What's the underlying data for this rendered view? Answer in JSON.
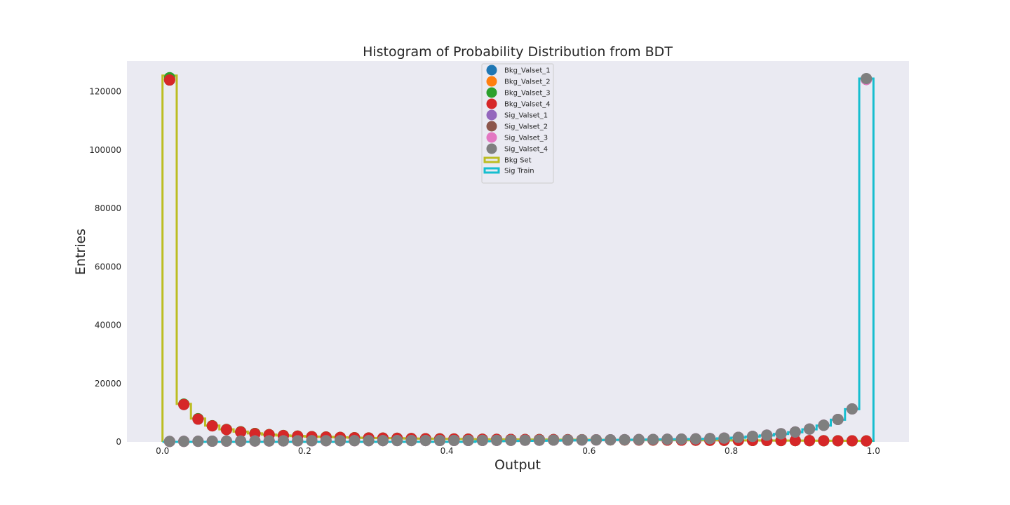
{
  "chart_data": {
    "type": "histogram",
    "title": "Histogram of Probability Distribution from BDT",
    "xlabel": "Output",
    "ylabel": "Entries",
    "xlim": [
      -0.05,
      1.05
    ],
    "ylim": [
      0,
      130500
    ],
    "xticks": [
      0.0,
      0.2,
      0.4,
      0.6,
      0.8,
      1.0
    ],
    "xtick_labels": [
      "0.0",
      "0.2",
      "0.4",
      "0.6",
      "0.8",
      "1.0"
    ],
    "yticks": [
      0,
      20000,
      40000,
      60000,
      80000,
      100000,
      120000
    ],
    "ytick_labels": [
      "0",
      "20000",
      "40000",
      "60000",
      "80000",
      "100000",
      "120000"
    ],
    "grid": false,
    "background": "#eaeaf2",
    "legend_position": "upper-center",
    "bin_edges": [
      0.0,
      0.02,
      0.04,
      0.06,
      0.08,
      0.1,
      0.12,
      0.14,
      0.16,
      0.18,
      0.2,
      0.22,
      0.24,
      0.26,
      0.28,
      0.3,
      0.32,
      0.34,
      0.36,
      0.38,
      0.4,
      0.42,
      0.44,
      0.46,
      0.48,
      0.5,
      0.52,
      0.54,
      0.56,
      0.58,
      0.6,
      0.62,
      0.64,
      0.66,
      0.68,
      0.7,
      0.72,
      0.74,
      0.76,
      0.78,
      0.8,
      0.82,
      0.84,
      0.86,
      0.88,
      0.9,
      0.92,
      0.94,
      0.96,
      0.98,
      1.0
    ],
    "bin_centers": [
      0.01,
      0.03,
      0.05,
      0.07,
      0.09,
      0.11,
      0.13,
      0.15,
      0.17,
      0.19,
      0.21,
      0.23,
      0.25,
      0.27,
      0.29,
      0.31,
      0.33,
      0.35,
      0.37,
      0.39,
      0.41,
      0.43,
      0.45,
      0.47,
      0.49,
      0.51,
      0.53,
      0.55,
      0.57,
      0.59,
      0.61,
      0.63,
      0.65,
      0.67,
      0.69,
      0.71,
      0.73,
      0.75,
      0.77,
      0.79,
      0.81,
      0.83,
      0.85,
      0.87,
      0.89,
      0.91,
      0.93,
      0.95,
      0.97,
      0.99
    ],
    "histograms": [
      {
        "name": "Bkg Set",
        "color": "#bcbd22",
        "values": [
          125500,
          13000,
          8000,
          5600,
          4300,
          3500,
          2900,
          2500,
          2200,
          2000,
          1800,
          1700,
          1550,
          1450,
          1350,
          1300,
          1250,
          1150,
          1100,
          1050,
          1000,
          950,
          900,
          880,
          850,
          820,
          800,
          780,
          760,
          740,
          720,
          700,
          680,
          660,
          640,
          620,
          600,
          580,
          560,
          540,
          520,
          500,
          480,
          460,
          440,
          420,
          400,
          380,
          360,
          340
        ]
      },
      {
        "name": "Sig Train",
        "color": "#17becf",
        "values": [
          0,
          0,
          0,
          0,
          0,
          0,
          0,
          0,
          0,
          0,
          0,
          0,
          0,
          0,
          0,
          0,
          0,
          0,
          0,
          0,
          0,
          0,
          200,
          250,
          300,
          350,
          400,
          450,
          500,
          550,
          600,
          650,
          700,
          750,
          800,
          850,
          900,
          950,
          1050,
          1200,
          1450,
          1800,
          2200,
          2700,
          3300,
          4300,
          5600,
          7600,
          11200,
          124500
        ]
      }
    ],
    "series": [
      {
        "name": "Bkg_Valset_1",
        "color": "#1f77b4",
        "values": [
          124000,
          12800,
          7800,
          5500,
          4200,
          3400,
          2850,
          2450,
          2150,
          1950,
          1780,
          1650,
          1520,
          1420,
          1330,
          1280,
          1220,
          1130,
          1080,
          1030,
          980,
          930,
          890,
          860,
          830,
          810,
          790,
          770,
          750,
          730,
          710,
          690,
          670,
          650,
          630,
          610,
          590,
          570,
          550,
          530,
          510,
          490,
          470,
          450,
          430,
          410,
          390,
          370,
          350,
          330
        ]
      },
      {
        "name": "Bkg_Valset_2",
        "color": "#ff7f0e",
        "values": [
          124200,
          12900,
          7900,
          5500,
          4250,
          3450,
          2880,
          2480,
          2180,
          1980,
          1790,
          1680,
          1540,
          1440,
          1340,
          1290,
          1230,
          1140,
          1090,
          1040,
          990,
          940,
          900,
          870,
          840,
          815,
          795,
          775,
          755,
          735,
          715,
          695,
          675,
          655,
          635,
          615,
          595,
          575,
          555,
          535,
          515,
          495,
          475,
          455,
          435,
          415,
          395,
          375,
          355,
          335
        ]
      },
      {
        "name": "Bkg_Valset_3",
        "color": "#2ca02c",
        "values": [
          124800,
          12950,
          7950,
          5550,
          4280,
          3480,
          2890,
          2490,
          2190,
          1990,
          1800,
          1690,
          1545,
          1445,
          1345,
          1295,
          1240,
          1145,
          1095,
          1045,
          995,
          945,
          905,
          875,
          845,
          818,
          798,
          778,
          758,
          738,
          718,
          698,
          678,
          658,
          638,
          618,
          598,
          578,
          558,
          538,
          518,
          498,
          478,
          458,
          438,
          418,
          398,
          378,
          358,
          338
        ]
      },
      {
        "name": "Bkg_Valset_4",
        "color": "#d62728",
        "values": [
          124000,
          12800,
          7800,
          5500,
          4200,
          3400,
          2800,
          2450,
          2150,
          1950,
          1780,
          1650,
          1520,
          1420,
          1330,
          1280,
          1220,
          1130,
          1080,
          1030,
          980,
          930,
          890,
          860,
          830,
          810,
          790,
          770,
          750,
          730,
          710,
          690,
          670,
          650,
          630,
          610,
          590,
          570,
          550,
          530,
          510,
          490,
          470,
          450,
          430,
          410,
          390,
          370,
          350,
          330
        ]
      },
      {
        "name": "Sig_Valset_1",
        "color": "#9467bd",
        "values": [
          150,
          170,
          200,
          230,
          260,
          280,
          300,
          320,
          340,
          360,
          380,
          390,
          400,
          410,
          420,
          430,
          440,
          450,
          460,
          470,
          480,
          490,
          500,
          520,
          540,
          560,
          580,
          600,
          620,
          650,
          680,
          720,
          760,
          800,
          850,
          900,
          960,
          1050,
          1150,
          1300,
          1550,
          1900,
          2300,
          2800,
          3400,
          4400,
          5700,
          7700,
          11300,
          124200
        ]
      },
      {
        "name": "Sig_Valset_2",
        "color": "#8c564b",
        "values": [
          150,
          170,
          200,
          230,
          260,
          280,
          300,
          320,
          340,
          360,
          380,
          390,
          400,
          410,
          420,
          430,
          440,
          450,
          460,
          470,
          480,
          490,
          500,
          520,
          540,
          560,
          580,
          600,
          620,
          650,
          680,
          720,
          760,
          800,
          850,
          900,
          960,
          1050,
          1150,
          1300,
          1550,
          1900,
          2300,
          2800,
          3400,
          4400,
          5700,
          7700,
          11300,
          124200
        ]
      },
      {
        "name": "Sig_Valset_3",
        "color": "#e377c2",
        "values": [
          150,
          170,
          200,
          230,
          260,
          280,
          300,
          320,
          340,
          360,
          380,
          390,
          400,
          410,
          420,
          430,
          440,
          450,
          460,
          470,
          480,
          490,
          500,
          520,
          540,
          560,
          580,
          600,
          620,
          650,
          680,
          720,
          760,
          800,
          850,
          900,
          960,
          1050,
          1150,
          1300,
          1550,
          1900,
          2300,
          2800,
          3400,
          4400,
          5700,
          7700,
          11300,
          124200
        ]
      },
      {
        "name": "Sig_Valset_4",
        "color": "#7f7f7f",
        "values": [
          150,
          170,
          200,
          230,
          260,
          280,
          300,
          320,
          340,
          360,
          380,
          390,
          400,
          410,
          420,
          430,
          440,
          450,
          460,
          470,
          480,
          490,
          500,
          520,
          540,
          560,
          580,
          600,
          620,
          650,
          680,
          720,
          760,
          800,
          850,
          900,
          960,
          1050,
          1150,
          1300,
          1550,
          1900,
          2300,
          2800,
          3400,
          4400,
          5700,
          7700,
          11300,
          124500
        ]
      }
    ]
  }
}
